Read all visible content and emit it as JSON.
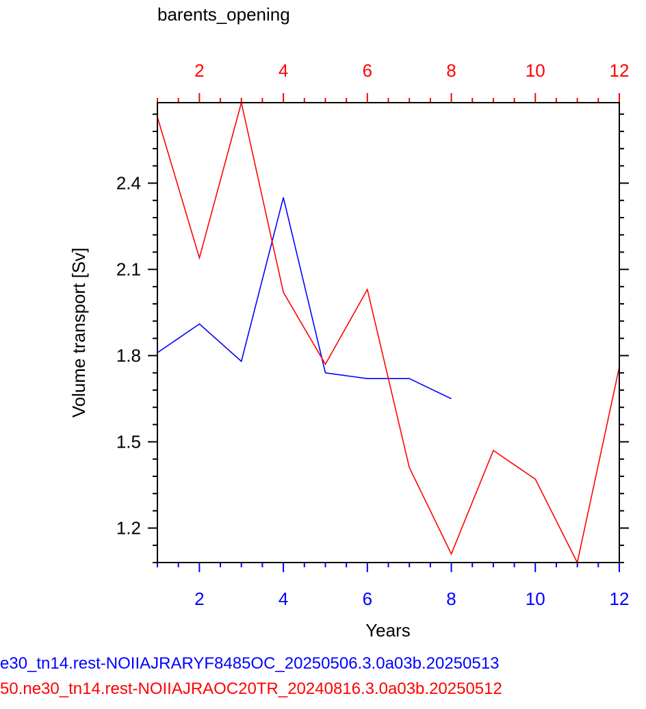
{
  "chart_data": {
    "type": "line",
    "title": "barents_opening",
    "xlabel": "Years",
    "ylabel": "Volume transport [Sv]",
    "xlim": [
      1,
      12
    ],
    "ylim": [
      1.08,
      2.68
    ],
    "x_ticks": [
      2,
      4,
      6,
      8,
      10,
      12
    ],
    "y_ticks": [
      1.2,
      1.5,
      1.8,
      2.1,
      2.4
    ],
    "grid": false,
    "series": [
      {
        "name": "e30_tn14.rest-NOIIAJRARYF8485OC_20250506.3.0a03b.20250513",
        "color": "#0000ff",
        "x": [
          1,
          2,
          3,
          4,
          5,
          6,
          7,
          8
        ],
        "values": [
          1.81,
          1.91,
          1.78,
          2.35,
          1.74,
          1.72,
          1.72,
          1.65
        ]
      },
      {
        "name": "50.ne30_tn14.rest-NOIIAJRAOC20TR_20240816.3.0a03b.20250512",
        "color": "#ff0000",
        "x": [
          1,
          2,
          3,
          4,
          5,
          6,
          7,
          8,
          9,
          10,
          11,
          12
        ],
        "values": [
          2.63,
          2.14,
          2.68,
          2.02,
          1.77,
          2.03,
          1.41,
          1.11,
          1.47,
          1.37,
          1.08,
          1.76
        ]
      }
    ]
  }
}
